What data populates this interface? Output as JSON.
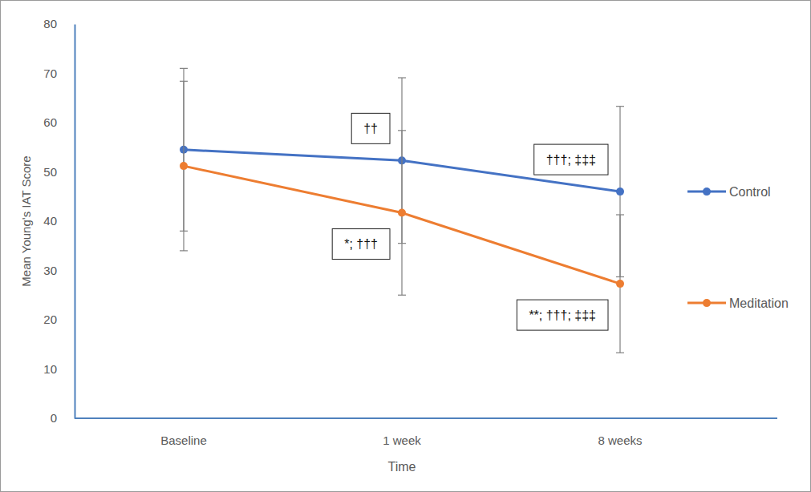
{
  "chart_data": {
    "type": "line",
    "x_label": "Time",
    "y_label": "Mean Young's IAT Score",
    "categories": [
      "Baseline",
      "1 week",
      "8 weeks"
    ],
    "series": [
      {
        "name": "Control",
        "color": "#4472c4",
        "marker": "circle",
        "values": [
          54.5,
          52.3,
          46.0
        ],
        "errors": [
          16.5,
          16.8,
          17.3
        ],
        "annotations": [
          null,
          "††",
          "†††; ‡‡‡"
        ]
      },
      {
        "name": "Meditation",
        "color": "#ed7d31",
        "marker": "circle",
        "values": [
          51.2,
          41.7,
          27.3
        ],
        "errors": [
          17.2,
          16.7,
          14.0
        ],
        "annotations": [
          null,
          "*; †††",
          "**; †††; ‡‡‡"
        ]
      }
    ],
    "ylim": [
      0,
      80
    ],
    "yticks": [
      0,
      10,
      20,
      30,
      40,
      50,
      60,
      70,
      80
    ],
    "grid": false,
    "legend": "right"
  }
}
